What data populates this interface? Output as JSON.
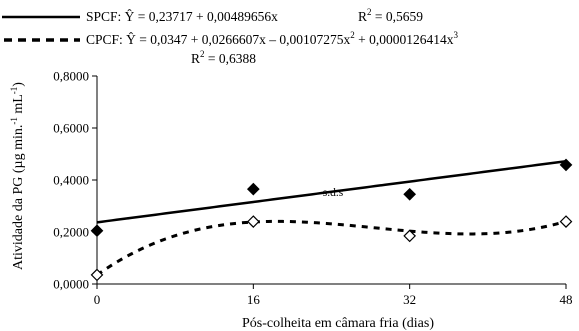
{
  "chart_data": {
    "type": "scatter",
    "xlabel": "Pós-colheita em câmara fria (dias)",
    "ylabel": "Atividade da PG (µg min.-1 mL-1)",
    "x_ticks": [
      "0",
      "16",
      "32",
      "48"
    ],
    "y_ticks": [
      "0,0000",
      "0,2000",
      "0,4000",
      "0,6000",
      "0,8000"
    ],
    "xlim": [
      0,
      48
    ],
    "ylim": [
      0,
      0.8
    ],
    "grid": false,
    "legend_position": "top",
    "annotation": "s.d.s",
    "series": [
      {
        "name": "SPCF",
        "marker": "filled-diamond",
        "line": "solid",
        "x": [
          0,
          16,
          32,
          48
        ],
        "y": [
          0.205,
          0.365,
          0.345,
          0.458
        ],
        "equation": "SPCF: Ŷ = 0,23717 + 0,00489656x",
        "r2": "R² = 0,5659",
        "coefficients": [
          0.23717,
          0.00489656
        ]
      },
      {
        "name": "CPCF",
        "marker": "open-diamond",
        "line": "dashed",
        "x": [
          0,
          16,
          32,
          48
        ],
        "y": [
          0.035,
          0.24,
          0.185,
          0.24
        ],
        "equation": "CPCF: Ŷ = 0,0347 + 0,0266607x – 0,00107275x² + 0,0000126414x³",
        "r2": "R² = 0,6388",
        "coefficients": [
          0.0347,
          0.0266607,
          -0.00107275,
          1.26414e-05
        ]
      }
    ]
  }
}
